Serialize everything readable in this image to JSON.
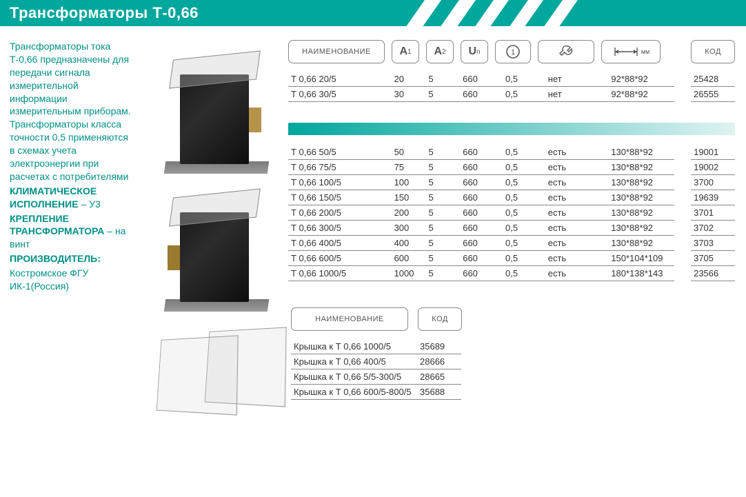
{
  "title": "Трансформаторы Т-0,66",
  "accent_color": "#00a79d",
  "text_color_teal": "#008f86",
  "description": {
    "para": "Трансформаторы тока Т-0,66 предназначены для передачи сигнала измерительной информации измерительным приборам. Трансформаторы класса точности 0,5 применяются в схемах учета электроэнергии при расчетах с потребителями",
    "climate_label": "КЛИМАТИЧЕСКОЕ ИСПОЛНЕНИЕ",
    "climate_value": " – У3",
    "mount_label": "КРЕПЛЕНИЕ ТРАНСФОРМАТОРА",
    "mount_value": " – на винт",
    "maker_label": "ПРОИЗВОДИТЕЛЬ:",
    "maker_value": "Костромское ФГУ ИК-1(Россия)"
  },
  "headers": {
    "name": "НАИМЕНОВАНИЕ",
    "a1": "A",
    "a1_sub": "1",
    "a2": "A",
    "a2_sub": "2",
    "un": "U",
    "un_sub": "n",
    "o_icon": "circle-1-icon",
    "tool_icon": "wrench-icon",
    "dim_icon": "dimension-mm-icon",
    "dim_text": "мм",
    "code": "КОД"
  },
  "table1": {
    "rows": [
      {
        "name": "Т 0,66 20/5",
        "a1": "20",
        "a2": "5",
        "un": "660",
        "o": "0,5",
        "tool": "нет",
        "dim": "92*88*92",
        "code": "25428"
      },
      {
        "name": "Т 0,66 30/5",
        "a1": "30",
        "a2": "5",
        "un": "660",
        "o": "0,5",
        "tool": "нет",
        "dim": "92*88*92",
        "code": "26555"
      }
    ]
  },
  "table2": {
    "rows": [
      {
        "name": "Т 0,66 50/5",
        "a1": "50",
        "a2": "5",
        "un": "660",
        "o": "0,5",
        "tool": "есть",
        "dim": "130*88*92",
        "code": "19001"
      },
      {
        "name": "Т 0,66 75/5",
        "a1": "75",
        "a2": "5",
        "un": "660",
        "o": "0,5",
        "tool": "есть",
        "dim": "130*88*92",
        "code": "19002"
      },
      {
        "name": "Т 0,66 100/5",
        "a1": "100",
        "a2": "5",
        "un": "660",
        "o": "0,5",
        "tool": "есть",
        "dim": "130*88*92",
        "code": "3700"
      },
      {
        "name": "Т 0,66 150/5",
        "a1": "150",
        "a2": "5",
        "un": "660",
        "o": "0,5",
        "tool": "есть",
        "dim": "130*88*92",
        "code": "19639"
      },
      {
        "name": "Т 0,66 200/5",
        "a1": "200",
        "a2": "5",
        "un": "660",
        "o": "0,5",
        "tool": "есть",
        "dim": "130*88*92",
        "code": "3701"
      },
      {
        "name": "Т 0,66 300/5",
        "a1": "300",
        "a2": "5",
        "un": "660",
        "o": "0,5",
        "tool": "есть",
        "dim": "130*88*92",
        "code": "3702"
      },
      {
        "name": "Т 0,66 400/5",
        "a1": "400",
        "a2": "5",
        "un": "660",
        "o": "0,5",
        "tool": "есть",
        "dim": "130*88*92",
        "code": "3703"
      },
      {
        "name": "Т 0,66 600/5",
        "a1": "600",
        "a2": "5",
        "un": "660",
        "o": "0,5",
        "tool": "есть",
        "dim": "150*104*109",
        "code": "3705"
      },
      {
        "name": "Т 0,66 1000/5",
        "a1": "1000",
        "a2": "5",
        "un": "660",
        "o": "0,5",
        "tool": "есть",
        "dim": "180*138*143",
        "code": "23566"
      }
    ]
  },
  "covers": {
    "headers": {
      "name": "НАИМЕНОВАНИЕ",
      "code": "КОД"
    },
    "rows": [
      {
        "name": "Крышка к Т 0,66 1000/5",
        "code": "35689"
      },
      {
        "name": "Крышка к Т 0,66 400/5",
        "code": "28666"
      },
      {
        "name": "Крышка к Т 0,66 5/5-300/5",
        "code": "28665"
      },
      {
        "name": "Крышка к Т 0,66 600/5-800/5",
        "code": "35688"
      }
    ]
  }
}
